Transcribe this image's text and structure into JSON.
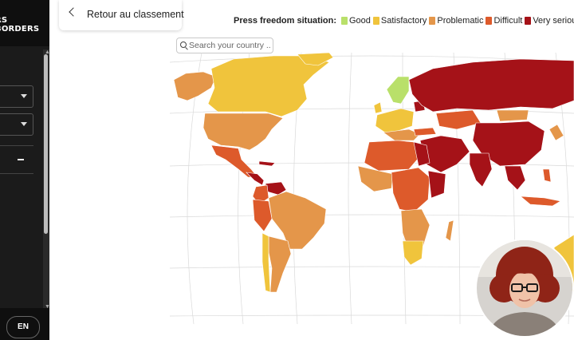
{
  "sidebar": {
    "logo": {
      "line1": "RS",
      "line2": "BORDERS"
    },
    "language": "EN"
  },
  "back": {
    "label": "Retour au classement"
  },
  "legend": {
    "title": "Press freedom situation:",
    "items": [
      {
        "label": "Good",
        "color": "#b9e06a"
      },
      {
        "label": "Satisfactory",
        "color": "#f0c43c"
      },
      {
        "label": "Problematic",
        "color": "#e4964a"
      },
      {
        "label": "Difficult",
        "color": "#dd5a2b"
      },
      {
        "label": "Very serious",
        "color": "#a51218"
      }
    ]
  },
  "search": {
    "placeholder": "Search your country ..."
  },
  "map": {
    "type": "press freedom world map"
  },
  "webcam": {
    "icon": "presenter-webcam"
  }
}
